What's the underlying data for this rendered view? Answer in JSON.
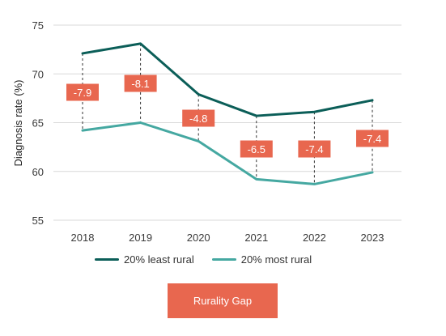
{
  "chart_data": {
    "type": "line",
    "x": [
      "2018",
      "2019",
      "2020",
      "2021",
      "2022",
      "2023"
    ],
    "series": [
      {
        "name": "20% least rural",
        "values": [
          72.1,
          73.1,
          67.9,
          65.7,
          66.1,
          67.3
        ],
        "color": "#0b5e58"
      },
      {
        "name": "20% most rural",
        "values": [
          64.2,
          65.0,
          63.1,
          59.2,
          58.7,
          59.9
        ],
        "color": "#45a8a1"
      }
    ],
    "gap_labels": [
      "-7.9",
      "-8.1",
      "-4.8",
      "-6.5",
      "-7.4",
      "-7.4"
    ],
    "gap_label_color": "#e8674f",
    "ylabel": "Diagnosis rate (%)",
    "yticks": [
      55,
      60,
      65,
      70,
      75
    ],
    "ylim": [
      55,
      75
    ],
    "grid": true,
    "legend": "bottom"
  },
  "button": {
    "label": "Rurality Gap",
    "color": "#e8674f"
  }
}
